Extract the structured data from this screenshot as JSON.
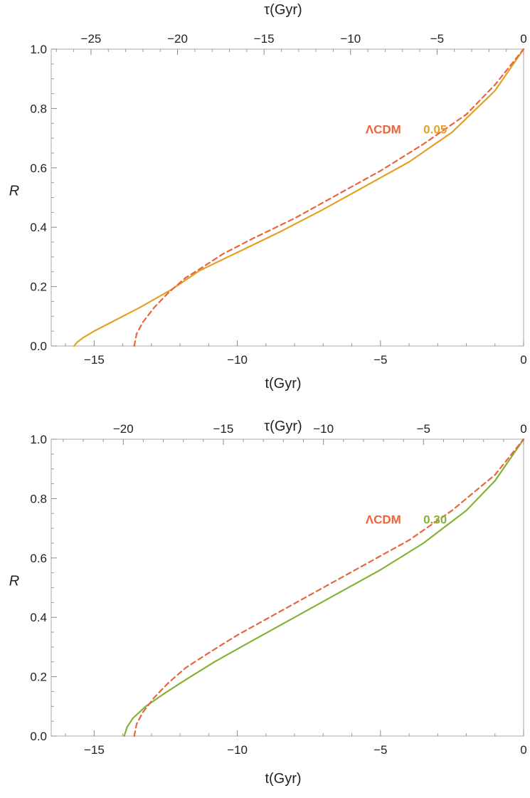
{
  "chart_data": [
    {
      "type": "line",
      "xlabel": "t(Gyr)",
      "ylabel": "R",
      "x2label": "τ(Gyr)",
      "xlim": [
        -16.5,
        0
      ],
      "ylim": [
        0,
        1
      ],
      "x2lim": [
        -27.3,
        0
      ],
      "grid": false,
      "xticks": [
        -15,
        -10,
        -5,
        0
      ],
      "xtick_labels": [
        "−15",
        "−10",
        "−5",
        "0"
      ],
      "yticks": [
        0,
        0.2,
        0.4,
        0.6,
        0.8,
        1
      ],
      "ytick_labels": [
        "0.0",
        "0.2",
        "0.4",
        "0.6",
        "0.8",
        "1.0"
      ],
      "x2ticks": [
        -25,
        -20,
        -15,
        -10,
        -5,
        0
      ],
      "x2tick_labels": [
        "−25",
        "−20",
        "−15",
        "−10",
        "−5",
        "0"
      ],
      "series": [
        {
          "name": "ΛCDM",
          "color": "#e8663d",
          "dash": true,
          "x": [
            -13.6,
            -13.52,
            -13.3,
            -12.9,
            -12.4,
            -11.8,
            -11.3,
            -10.5,
            -9.5,
            -8.0,
            -6.5,
            -5.0,
            -3.5,
            -2.0,
            -1.0,
            0
          ],
          "y": [
            0.0,
            0.04,
            0.08,
            0.13,
            0.18,
            0.23,
            0.26,
            0.31,
            0.36,
            0.43,
            0.51,
            0.59,
            0.68,
            0.78,
            0.88,
            1.0
          ]
        },
        {
          "name": "0.05",
          "color": "#e3a127",
          "dash": false,
          "x": [
            -15.7,
            -15.6,
            -15.4,
            -15.0,
            -14.4,
            -13.4,
            -12.3,
            -11.3,
            -10.0,
            -8.5,
            -7.0,
            -5.5,
            -4.0,
            -2.5,
            -1.0,
            0
          ],
          "y": [
            0.0,
            0.012,
            0.027,
            0.05,
            0.08,
            0.13,
            0.19,
            0.255,
            0.315,
            0.385,
            0.46,
            0.54,
            0.62,
            0.72,
            0.86,
            1.0
          ]
        }
      ],
      "annotations": [
        {
          "text": "ΛCDM",
          "x": -4.9,
          "y": 0.73,
          "color": "#e8663d"
        },
        {
          "text": "0.05",
          "x": -3.5,
          "y": 0.73,
          "color": "#e3a127"
        }
      ]
    },
    {
      "type": "line",
      "xlabel": "t(Gyr)",
      "ylabel": "R",
      "x2label": "τ(Gyr)",
      "xlim": [
        -16.5,
        0
      ],
      "ylim": [
        0,
        1
      ],
      "x2lim": [
        -23.6,
        0
      ],
      "grid": false,
      "xticks": [
        -15,
        -10,
        -5,
        0
      ],
      "xtick_labels": [
        "−15",
        "−10",
        "−5",
        "0"
      ],
      "yticks": [
        0,
        0.2,
        0.4,
        0.6,
        0.8,
        1
      ],
      "ytick_labels": [
        "0.0",
        "0.2",
        "0.4",
        "0.6",
        "0.8",
        "1.0"
      ],
      "x2ticks": [
        -20,
        -15,
        -10,
        -5,
        0
      ],
      "x2tick_labels": [
        "−20",
        "−15",
        "−10",
        "−5",
        "0"
      ],
      "series": [
        {
          "name": "ΛCDM",
          "color": "#e8663d",
          "dash": true,
          "x": [
            -13.6,
            -13.52,
            -13.3,
            -12.9,
            -12.4,
            -11.8,
            -11.0,
            -10.0,
            -8.5,
            -7.0,
            -5.5,
            -4.0,
            -2.5,
            -1.0,
            0
          ],
          "y": [
            0.0,
            0.04,
            0.08,
            0.13,
            0.18,
            0.23,
            0.28,
            0.34,
            0.42,
            0.5,
            0.58,
            0.66,
            0.76,
            0.88,
            1.0
          ]
        },
        {
          "name": "0.30",
          "color": "#84b236",
          "dash": false,
          "x": [
            -13.95,
            -13.85,
            -13.65,
            -13.2,
            -12.6,
            -11.8,
            -10.8,
            -9.5,
            -8.0,
            -6.5,
            -5.0,
            -3.5,
            -2.0,
            -1.0,
            0
          ],
          "y": [
            0.0,
            0.03,
            0.06,
            0.1,
            0.14,
            0.19,
            0.25,
            0.32,
            0.4,
            0.48,
            0.56,
            0.65,
            0.76,
            0.86,
            1.0
          ]
        }
      ],
      "annotations": [
        {
          "text": "ΛCDM",
          "x": -4.9,
          "y": 0.73,
          "color": "#e8663d"
        },
        {
          "text": "0.30",
          "x": -3.5,
          "y": 0.73,
          "color": "#84b236"
        }
      ]
    }
  ]
}
